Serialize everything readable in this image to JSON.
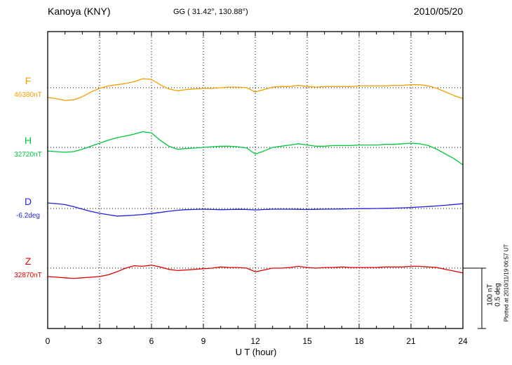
{
  "header": {
    "station": "Kanoya (KNY)",
    "coordinates": "GG ( 31.42°, 130.88°)",
    "date": "2010/05/20"
  },
  "footer_note": "Plotted at 2010/11/19 06:57 UT",
  "chart_data": {
    "type": "line",
    "title": "Kanoya (KNY) magnetogram 2010/05/20",
    "xlabel": "U T (hour)",
    "x_range": [
      0,
      24
    ],
    "x_ticks": [
      0,
      3,
      6,
      9,
      12,
      15,
      18,
      21,
      24
    ],
    "grid": "dotted vertical line every 3 hours; dotted horizontal baseline per trace",
    "legend_position": "left margin, one colored label per trace",
    "sample_interval_hours": 0.5,
    "scale_bar": {
      "nt_label": "100 nT",
      "deg_label": "0.5 deg",
      "nt_per_div": 100,
      "deg_per_div": 0.5
    },
    "series": [
      {
        "name": "F",
        "baseline_label": "46380nT",
        "baseline_value": 46380,
        "unit": "nT",
        "color": "#f0a000",
        "offsets": [
          -16,
          -18,
          -21,
          -20,
          -15,
          -7,
          -1,
          3,
          5,
          7,
          10,
          15,
          14,
          5,
          -2,
          -5,
          -3,
          -2,
          -1,
          -1,
          0,
          1,
          1,
          0,
          -7,
          -3,
          1,
          2,
          2,
          4,
          2,
          1,
          2,
          2,
          2,
          2,
          3,
          3,
          3,
          3,
          4,
          4,
          5,
          5,
          3,
          -1,
          -7,
          -13,
          -18
        ]
      },
      {
        "name": "H",
        "baseline_label": "32720nT",
        "baseline_value": 32720,
        "unit": "nT",
        "color": "#00c83c",
        "offsets": [
          -6,
          -7,
          -8,
          -7,
          -3,
          2,
          7,
          12,
          16,
          19,
          22,
          26,
          24,
          12,
          2,
          -3,
          -2,
          -1,
          0,
          1,
          2,
          2,
          1,
          -1,
          -11,
          -6,
          0,
          2,
          4,
          6,
          4,
          2,
          2,
          3,
          3,
          3,
          4,
          4,
          4,
          5,
          5,
          6,
          7,
          6,
          3,
          -3,
          -11,
          -19,
          -29
        ]
      },
      {
        "name": "D",
        "baseline_label": "-6.2deg",
        "baseline_value": -6.2,
        "unit": "deg",
        "color": "#2020dd",
        "offsets": [
          0.046,
          0.04,
          0.032,
          0.015,
          -0.005,
          -0.025,
          -0.04,
          -0.052,
          -0.063,
          -0.06,
          -0.055,
          -0.05,
          -0.042,
          -0.033,
          -0.023,
          -0.015,
          -0.01,
          -0.008,
          -0.006,
          -0.008,
          -0.01,
          -0.009,
          -0.007,
          -0.008,
          -0.012,
          -0.009,
          -0.006,
          -0.006,
          -0.006,
          -0.007,
          -0.009,
          -0.007,
          -0.006,
          -0.005,
          -0.004,
          -0.003,
          -0.002,
          -0.001,
          0.0,
          0.001,
          0.003,
          0.005,
          0.008,
          0.012,
          0.016,
          0.021,
          0.027,
          0.033,
          0.04
        ]
      },
      {
        "name": "Z",
        "baseline_label": "32870nT",
        "baseline_value": 32870,
        "unit": "nT",
        "color": "#e00000",
        "offsets": [
          -14,
          -15,
          -16,
          -17,
          -16,
          -15,
          -14,
          -11,
          -6,
          0,
          4,
          3,
          5,
          2,
          -2,
          -4,
          -3,
          -2,
          -1,
          0,
          2,
          1,
          1,
          0,
          -6,
          -3,
          0,
          0,
          1,
          3,
          1,
          0,
          1,
          1,
          2,
          1,
          1,
          1,
          1,
          2,
          2,
          2,
          3,
          3,
          2,
          1,
          -2,
          -5,
          -8
        ]
      }
    ]
  }
}
